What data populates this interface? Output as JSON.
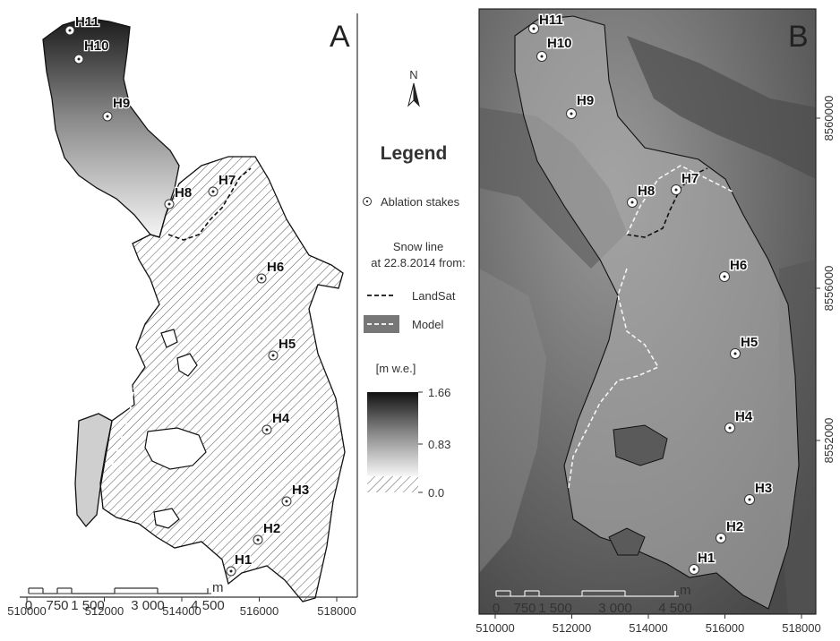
{
  "panels": [
    {
      "letter": "A"
    },
    {
      "letter": "B"
    }
  ],
  "stakes": [
    "H1",
    "H2",
    "H3",
    "H4",
    "H5",
    "H6",
    "H7",
    "H8",
    "H9",
    "H10",
    "H11"
  ],
  "x_ticks": [
    "510000",
    "512000",
    "514000",
    "516000",
    "518000"
  ],
  "y_ticks": [
    "8560000",
    "8556000",
    "8552000"
  ],
  "scalebar": {
    "labels": [
      "0",
      "750",
      "1 500",
      "3 000",
      "4 500"
    ],
    "unit": "m"
  },
  "north": "N",
  "legend": {
    "title": "Legend",
    "stakes_label": "Ablation stakes",
    "snowline_heading_1": "Snow line",
    "snowline_heading_2": "at 22.8.2014 from:",
    "landsat_label": "LandSat",
    "model_label": "Model",
    "units": "[m w.e.]",
    "colorbar": {
      "max": "1.66",
      "mid": "0.83",
      "min": "0.0"
    }
  },
  "colors": {
    "glacier_hatch": "#555555",
    "outline": "#111111",
    "satellite_bg": "#6e6e6e"
  }
}
